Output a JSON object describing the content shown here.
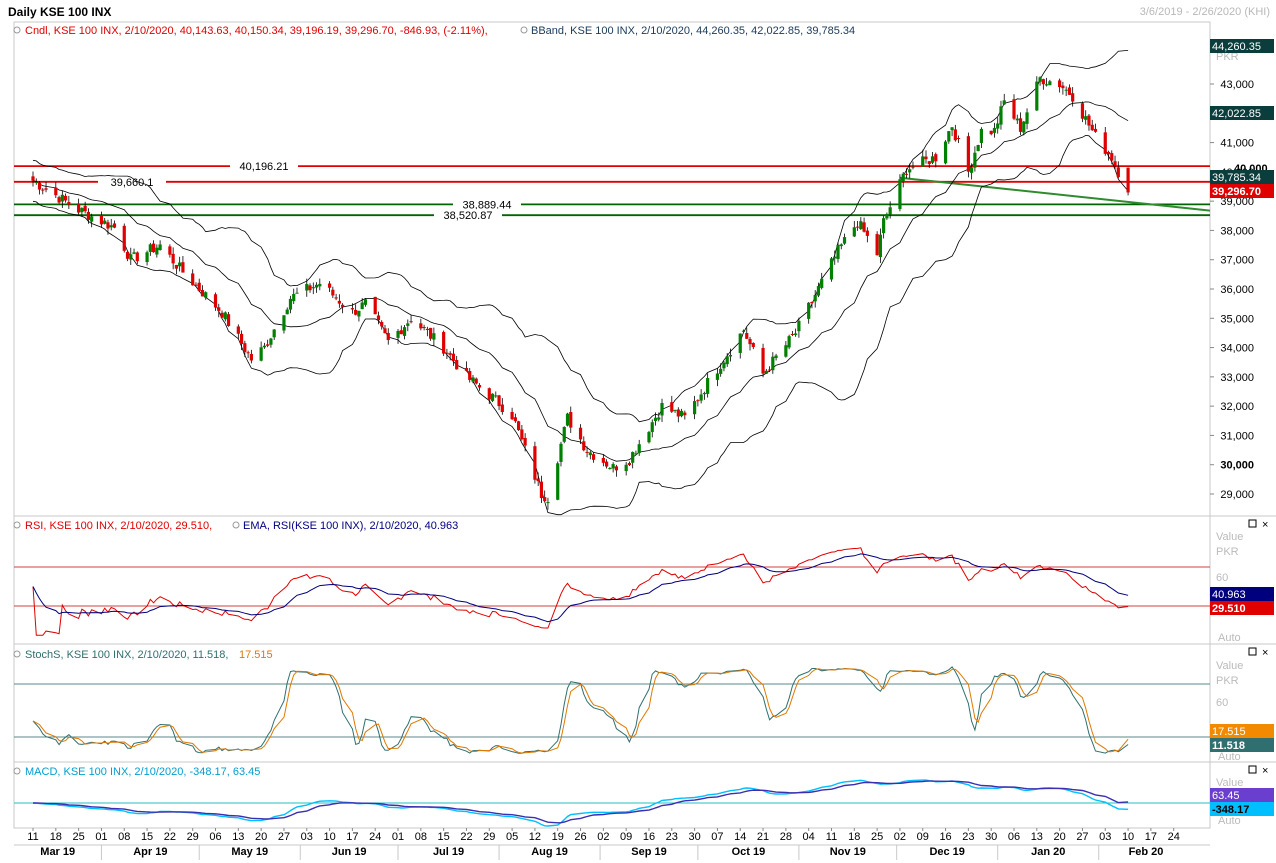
{
  "window": {
    "title": "Daily KSE 100 INX",
    "range": "3/6/2019 - 2/26/2020 (KHI)"
  },
  "colors": {
    "up": "#008000",
    "down": "#e00000",
    "band": "#000000",
    "resistance": "#e00000",
    "support": "#006400",
    "trend": "#2e8b2e",
    "rsi": "#e00000",
    "ema": "#00007f",
    "stoch_k": "#2f6f6f",
    "stoch_d": "#e07800",
    "macd": "#00bfff",
    "signal": "#3a2fb0"
  },
  "panels": {
    "price": {
      "legend_candle": "Cndl, KSE 100 INX, 2/10/2020, 40,143.63, 40,150.34, 39,196.19, 39,296.70, -846.93, (-2.11%),",
      "legend_bband": "BBand, KSE 100 INX, 2/10/2020, 44,260.35, 42,022.85, 39,785.34",
      "units": "PKR",
      "tag_upper": "44,260.35",
      "tag_mid": "42,022.85",
      "tag_lower": "39,785.34",
      "tag_close": "39,296.70",
      "tag_hidden": "40,000"
    },
    "rsi": {
      "legend_rsi": "RSI, KSE 100 INX, 2/10/2020, 29.510,",
      "legend_ema": "EMA, RSI(KSE 100 INX), 2/10/2020, 40.963",
      "value_label": "Value",
      "units": "PKR",
      "auto": "Auto",
      "tick_60": "60",
      "tag_ema": "40.963",
      "tag_rsi": "29.510"
    },
    "stoch": {
      "legend_k": "StochS, KSE 100 INX, 2/10/2020, 11.518,",
      "legend_d": "17.515",
      "value_label": "Value",
      "units": "PKR",
      "auto": "Auto",
      "tick_60": "60",
      "tag_d": "17.515",
      "tag_k": "11.518"
    },
    "macd": {
      "legend": "MACD, KSE 100 INX, 2/10/2020, -348.17, 63.45",
      "value_label": "Value",
      "auto": "Auto",
      "tag_signal": "63.45",
      "tag_macd": "-348.17"
    }
  },
  "chart_data": {
    "type": "candlestick",
    "title": "Daily KSE 100 INX",
    "price_ylim": [
      28500,
      44500
    ],
    "price_ticks": [
      "43,000",
      "42,000",
      "41,000",
      "40,000",
      "39,000",
      "38,000",
      "37,000",
      "36,000",
      "35,000",
      "34,000",
      "33,000",
      "32,000",
      "31,000",
      "30,000",
      "29,000"
    ],
    "price_tick_values": [
      43000,
      42000,
      41000,
      40000,
      39000,
      38000,
      37000,
      36000,
      35000,
      34000,
      33000,
      32000,
      31000,
      30000,
      29000
    ],
    "level_lines": [
      {
        "label": "40,196.21",
        "value": 40196.21,
        "kind": "resistance"
      },
      {
        "label": "39,660.1",
        "value": 39660.1,
        "kind": "resistance"
      },
      {
        "label": "38,889.44",
        "value": 38889.44,
        "kind": "support"
      },
      {
        "label": "38,520.87",
        "value": 38520.87,
        "kind": "support"
      }
    ],
    "trendline": [
      [
        "2019-12-02",
        39800
      ],
      [
        "2020-02-24",
        38880
      ]
    ],
    "price_keypoints": [
      [
        "2019-03-11",
        39700
      ],
      [
        "2019-03-25",
        38700
      ],
      [
        "2019-04-05",
        38100
      ],
      [
        "2019-04-10",
        37000
      ],
      [
        "2019-04-19",
        37500
      ],
      [
        "2019-04-25",
        36700
      ],
      [
        "2019-05-08",
        35200
      ],
      [
        "2019-05-17",
        33600
      ],
      [
        "2019-05-21",
        34000
      ],
      [
        "2019-05-29",
        35700
      ],
      [
        "2019-06-07",
        36200
      ],
      [
        "2019-06-17",
        35200
      ],
      [
        "2019-06-21",
        35500
      ],
      [
        "2019-06-28",
        34200
      ],
      [
        "2019-07-05",
        35000
      ],
      [
        "2019-07-15",
        34000
      ],
      [
        "2019-07-22",
        33000
      ],
      [
        "2019-07-30",
        32300
      ],
      [
        "2019-08-05",
        31700
      ],
      [
        "2019-08-14",
        29000
      ],
      [
        "2019-08-16",
        28900
      ],
      [
        "2019-08-22",
        31600
      ],
      [
        "2019-08-28",
        30500
      ],
      [
        "2019-09-05",
        29900
      ],
      [
        "2019-09-10",
        30200
      ],
      [
        "2019-09-20",
        32000
      ],
      [
        "2019-09-27",
        31600
      ],
      [
        "2019-10-04",
        32800
      ],
      [
        "2019-10-15",
        34600
      ],
      [
        "2019-10-21",
        33100
      ],
      [
        "2019-10-31",
        34500
      ],
      [
        "2019-11-06",
        35800
      ],
      [
        "2019-11-13",
        37300
      ],
      [
        "2019-11-19",
        38300
      ],
      [
        "2019-11-25",
        37200
      ],
      [
        "2019-11-27",
        38300
      ],
      [
        "2019-12-04",
        40100
      ],
      [
        "2019-12-13",
        40500
      ],
      [
        "2019-12-18",
        41600
      ],
      [
        "2019-12-23",
        40000
      ],
      [
        "2019-12-27",
        41400
      ],
      [
        "2019-12-31",
        41400
      ],
      [
        "2020-01-03",
        42400
      ],
      [
        "2020-01-08",
        41500
      ],
      [
        "2020-01-14",
        43200
      ],
      [
        "2020-01-20",
        43000
      ],
      [
        "2020-01-24",
        42600
      ],
      [
        "2020-01-31",
        41200
      ],
      [
        "2020-02-05",
        40500
      ],
      [
        "2020-02-10",
        39296.7
      ]
    ],
    "last_candle": {
      "date": "2020-02-10",
      "open": 40143.63,
      "high": 40150.34,
      "low": 39196.19,
      "close": 39296.7
    },
    "bollinger_last": {
      "upper": 44260.35,
      "middle": 42022.85,
      "lower": 39785.34
    },
    "rsi_last": 29.51,
    "rsi_ema_last": 40.963,
    "stoch_last": {
      "k": 11.518,
      "d": 17.515
    },
    "macd_last": {
      "macd": -348.17,
      "signal": 63.45
    },
    "x_day_ticks": [
      "11",
      "18",
      "25",
      "01",
      "08",
      "15",
      "22",
      "29",
      "06",
      "13",
      "20",
      "27",
      "03",
      "10",
      "17",
      "24",
      "01",
      "08",
      "15",
      "22",
      "29",
      "05",
      "12",
      "19",
      "26",
      "02",
      "09",
      "16",
      "23",
      "30",
      "07",
      "14",
      "21",
      "28",
      "04",
      "11",
      "18",
      "25",
      "02",
      "09",
      "16",
      "23",
      "30",
      "06",
      "13",
      "20",
      "27",
      "03",
      "10",
      "17",
      "24"
    ],
    "x_month_ticks": [
      "Mar 19",
      "Apr 19",
      "May 19",
      "Jun 19",
      "Jul 19",
      "Aug 19",
      "Sep 19",
      "Oct 19",
      "Nov 19",
      "Dec 19",
      "Jan 20",
      "Feb 20"
    ]
  }
}
